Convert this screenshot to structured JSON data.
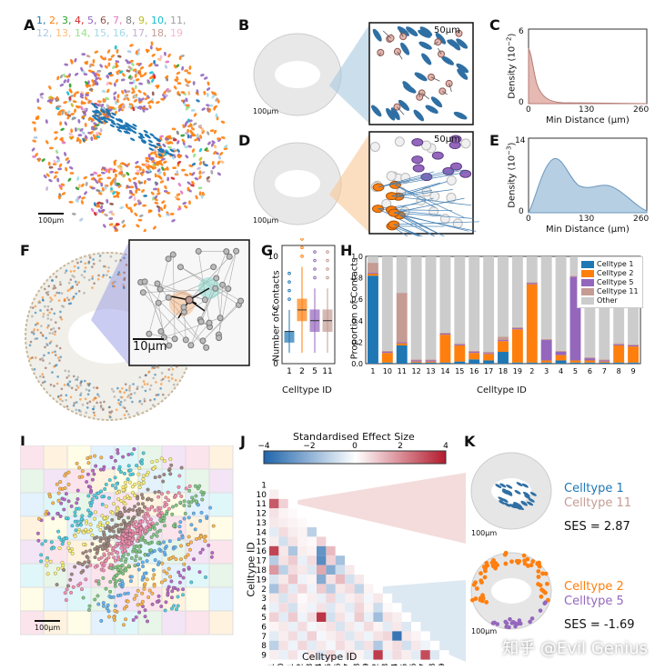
{
  "labels": {
    "A": "A",
    "B": "B",
    "C": "C",
    "D": "D",
    "E": "E",
    "F": "F",
    "G": "G",
    "H": "H",
    "I": "I",
    "J": "J",
    "K": "K"
  },
  "panelA": {
    "ids": [
      {
        "t": "1",
        "c": "#1f77b4"
      },
      {
        "t": "2",
        "c": "#ff7f0e"
      },
      {
        "t": "3",
        "c": "#2ca02c"
      },
      {
        "t": "4",
        "c": "#d62728"
      },
      {
        "t": "5",
        "c": "#9467bd"
      },
      {
        "t": "6",
        "c": "#8c564b"
      },
      {
        "t": "7",
        "c": "#e377c2"
      },
      {
        "t": "8",
        "c": "#7f7f7f"
      },
      {
        "t": "9",
        "c": "#bcbd22"
      },
      {
        "t": "10",
        "c": "#17becf"
      },
      {
        "t": "11",
        "c": "#a0a0a0"
      },
      {
        "t": "12",
        "c": "#aec7e8"
      },
      {
        "t": "13",
        "c": "#ffbb78"
      },
      {
        "t": "14",
        "c": "#98df8a"
      },
      {
        "t": "15",
        "c": "#a5d7e8"
      },
      {
        "t": "16",
        "c": "#9edae5"
      },
      {
        "t": "17",
        "c": "#c5b0d5"
      },
      {
        "t": "18",
        "c": "#c49c94"
      },
      {
        "t": "19",
        "c": "#f7b6d2"
      }
    ],
    "scalebar": "100μm"
  },
  "panelB": {
    "scalebar": "100μm",
    "zoom_scalebar": "50μm"
  },
  "panelD": {
    "scalebar": "100μm",
    "zoom_scalebar": "50μm"
  },
  "panelC": {
    "ylabel": "Density (10",
    "yexp": "−2",
    "ylabel_end": ")",
    "xlabel": "Min Distance (μm)",
    "yticks": [
      "0",
      "6"
    ],
    "xticks": [
      "0",
      "130",
      "260"
    ]
  },
  "panelE": {
    "ylabel": "Density (10",
    "yexp": "−3",
    "ylabel_end": ")",
    "xlabel": "Min Distance (μm)",
    "yticks": [
      "0",
      "14"
    ],
    "xticks": [
      "0",
      "130",
      "260"
    ]
  },
  "panelF": {
    "scalebar": "10μm"
  },
  "chart_data": [
    {
      "id": "G",
      "type": "box",
      "categories": [
        "1",
        "2",
        "5",
        "11"
      ],
      "ylabel": "Number of Contacts",
      "xlabel": "Celltype ID",
      "yticks": [
        "0",
        "5",
        "10"
      ],
      "ylim": [
        0,
        11
      ],
      "colors": [
        "#1f77b4",
        "#ff7f0e",
        "#9467bd",
        "#c49c94"
      ],
      "boxes": [
        {
          "q1": 2,
          "median": 3,
          "q3": 3,
          "whislo": 1,
          "whishi": 5
        },
        {
          "q1": 4,
          "median": 5,
          "q3": 6,
          "whislo": 1,
          "whishi": 9
        },
        {
          "q1": 3,
          "median": 4,
          "q3": 5,
          "whislo": 1,
          "whishi": 7
        },
        {
          "q1": 3,
          "median": 4,
          "q3": 5,
          "whislo": 1,
          "whishi": 7
        }
      ]
    },
    {
      "id": "H",
      "type": "stacked-bar",
      "categories": [
        "1",
        "10",
        "11",
        "12",
        "13",
        "14",
        "15",
        "16",
        "17",
        "18",
        "19",
        "2",
        "3",
        "4",
        "5",
        "6",
        "7",
        "8",
        "9"
      ],
      "ylabel": "Proportion of Contacts",
      "xlabel": "Celltype ID",
      "yticks": [
        "0.0",
        "0.2",
        "0.4",
        "0.6",
        "0.8",
        "1.0"
      ],
      "ylim": [
        0,
        1
      ],
      "legend_position": "top-right",
      "series": [
        {
          "name": "Celltype 1",
          "color": "#1f77b4",
          "values": [
            0.82,
            0.01,
            0.17,
            0.01,
            0.01,
            0.01,
            0.02,
            0.04,
            0.03,
            0.11,
            0.01,
            0.01,
            0.01,
            0.03,
            0.01,
            0.01,
            0.01,
            0.01,
            0.01
          ]
        },
        {
          "name": "Celltype 2",
          "color": "#ff7f0e",
          "values": [
            0.02,
            0.09,
            0.02,
            0.01,
            0.01,
            0.26,
            0.15,
            0.06,
            0.06,
            0.1,
            0.31,
            0.73,
            0.02,
            0.05,
            0.02,
            0.02,
            0.01,
            0.16,
            0.15
          ]
        },
        {
          "name": "Celltype 5",
          "color": "#9467bd",
          "values": [
            0.01,
            0.01,
            0.01,
            0.01,
            0.01,
            0.01,
            0.01,
            0.01,
            0.01,
            0.01,
            0.01,
            0.01,
            0.19,
            0.03,
            0.78,
            0.02,
            0.01,
            0.01,
            0.01
          ]
        },
        {
          "name": "Celltype 11",
          "color": "#c49c94",
          "values": [
            0.09,
            0.01,
            0.46,
            0.01,
            0.01,
            0.01,
            0.01,
            0.01,
            0.01,
            0.03,
            0.01,
            0.01,
            0.01,
            0.01,
            0.01,
            0.01,
            0.01,
            0.01,
            0.01
          ]
        },
        {
          "name": "Other",
          "color": "#cccccc",
          "values": [
            0.06,
            0.88,
            0.34,
            0.96,
            0.96,
            0.71,
            0.81,
            0.88,
            0.89,
            0.75,
            0.66,
            0.24,
            0.77,
            0.88,
            0.18,
            0.94,
            0.96,
            0.81,
            0.82
          ]
        }
      ]
    },
    {
      "id": "J",
      "type": "heatmap",
      "colorbar_label": "Standardised Effect Size",
      "colorbar_ticks": [
        "−4",
        "−2",
        "0",
        "2",
        "4"
      ],
      "vmin": -4,
      "vmax": 4,
      "ylabel": "Celltype ID",
      "xlabel": "Celltype ID",
      "labels": [
        "1",
        "10",
        "11",
        "12",
        "13",
        "14",
        "15",
        "16",
        "17",
        "18",
        "19",
        "2",
        "3",
        "4",
        "5",
        "6",
        "7",
        "8",
        "9"
      ],
      "rows": [
        [
          0
        ],
        [
          0.3,
          0
        ],
        [
          2.87,
          0.8,
          0
        ],
        [
          0.5,
          0.2,
          0.1,
          0
        ],
        [
          0.4,
          0.3,
          0.2,
          0.1,
          0
        ],
        [
          -0.5,
          0.6,
          0.3,
          0.2,
          -1.2,
          0
        ],
        [
          0.3,
          -0.8,
          0.5,
          0.2,
          0.1,
          0.8,
          0
        ],
        [
          3.2,
          0.4,
          -1.5,
          0.3,
          0.2,
          -2.8,
          1.2,
          0
        ],
        [
          -1.3,
          0.5,
          0.9,
          -0.4,
          0.6,
          -3.0,
          0.8,
          -1.6,
          0
        ],
        [
          1.8,
          -1.2,
          0.6,
          0.4,
          -0.6,
          1.5,
          -2.2,
          -0.9,
          0.4,
          0
        ],
        [
          -0.7,
          0.4,
          1.0,
          -0.3,
          0.2,
          -2.2,
          0.5,
          1.2,
          -0.8,
          0.4,
          0
        ],
        [
          -1.6,
          0.8,
          -0.5,
          0.7,
          -0.3,
          0.9,
          -1.3,
          0.4,
          0.6,
          -1.1,
          0.2,
          0
        ],
        [
          0.4,
          -0.7,
          0.5,
          0.1,
          0.3,
          -0.4,
          0.7,
          -0.5,
          0.3,
          0.5,
          -0.2,
          0.4,
          0
        ],
        [
          -0.4,
          0.6,
          -0.8,
          0.2,
          -0.3,
          0.5,
          -0.6,
          0.3,
          -0.5,
          0.7,
          0.2,
          -0.9,
          0.1,
          0
        ],
        [
          0.8,
          -0.5,
          0.9,
          -0.3,
          0.6,
          3.5,
          -0.8,
          0.5,
          -0.3,
          0.9,
          -0.4,
          -1.69,
          0.5,
          0.3,
          0
        ],
        [
          0.2,
          0.4,
          -0.4,
          0.6,
          -0.2,
          0.3,
          0.5,
          -0.7,
          0.4,
          -0.3,
          0.6,
          0.2,
          -0.5,
          0.4,
          -0.6,
          0
        ],
        [
          -0.5,
          0.3,
          0.6,
          -0.4,
          0.8,
          -0.2,
          0.3,
          0.5,
          -0.6,
          0.4,
          -0.3,
          0.5,
          0.7,
          -3.6,
          0.4,
          0.2,
          0
        ],
        [
          -1.2,
          0.5,
          -0.3,
          0.7,
          -0.5,
          0.4,
          -0.2,
          0.6,
          0.3,
          -0.7,
          0.5,
          -1.4,
          0.3,
          0.6,
          -0.8,
          0.4,
          -0.3,
          0
        ],
        [
          0.3,
          -0.4,
          0.5,
          -0.2,
          0.4,
          -0.6,
          0.7,
          -0.3,
          0.5,
          0.2,
          -0.5,
          3.4,
          -0.4,
          0.6,
          0.3,
          -0.5,
          3.1,
          -0.6,
          0
        ]
      ]
    }
  ],
  "panelK": {
    "top": {
      "line1": "Celltype 1",
      "line1_color": "#1f77b4",
      "line2": "Celltype 11",
      "line2_color": "#c49c94",
      "ses": "SES = 2.87",
      "scalebar": "100μm"
    },
    "bottom": {
      "line1": "Celltype 2",
      "line1_color": "#ff7f0e",
      "line2": "Celltype 5",
      "line2_color": "#9467bd",
      "ses": "SES = -1.69",
      "scalebar": "100μm"
    }
  },
  "panelI": {
    "scalebar": "100μm"
  },
  "watermark": "知乎 @Evil Genius"
}
